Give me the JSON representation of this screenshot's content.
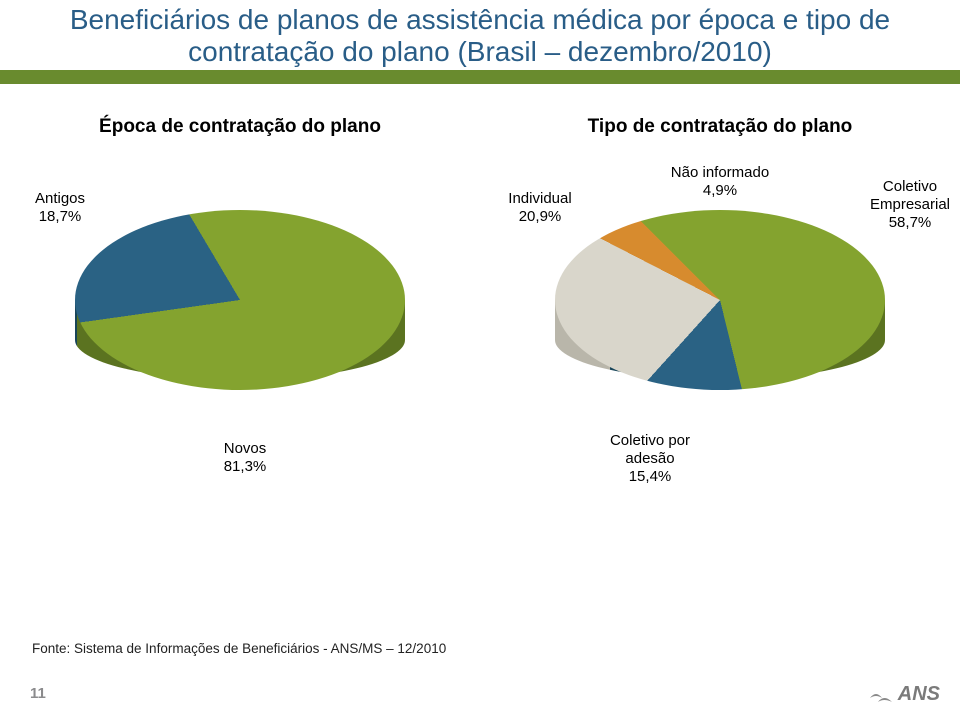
{
  "title_line1": "Beneficiários de planos de assistência médica por época e tipo de",
  "title_line2": "contratação do plano  (Brasil – dezembro/2010)",
  "title_color": "#295d87",
  "band_color": "#698b2e",
  "subtitle_left": "Época de contratação do plano",
  "subtitle_right": "Tipo de contratação do plano",
  "chart_left": {
    "type": "pie-3d",
    "slices": [
      {
        "name": "Antigos",
        "value": 18.7,
        "label": "Antigos\n18,7%",
        "color": "#2a6284",
        "side_color": "#184559"
      },
      {
        "name": "Novos",
        "value": 81.3,
        "label": "Novos\n81,3%",
        "color": "#84a32f",
        "side_color": "#5b7320"
      }
    ],
    "label_fontsize": 15
  },
  "chart_right": {
    "type": "pie-3d",
    "slices": [
      {
        "name": "Individual",
        "value": 20.9,
        "label": "Individual\n20,9%",
        "color": "#d9d6cb",
        "side_color": "#b9b6aa"
      },
      {
        "name": "Não informado",
        "value": 4.9,
        "label": "Não informado\n4,9%",
        "color": "#d78b2e",
        "side_color": "#a96a1f"
      },
      {
        "name": "Coletivo Empresarial",
        "value": 58.7,
        "label": "Coletivo\nEmpresarial\n58,7%",
        "color": "#84a32f",
        "side_color": "#5b7320"
      },
      {
        "name": "Coletivo por adesão",
        "value": 15.4,
        "label": "Coletivo por\nadesão\n15,4%",
        "color": "#2a6284",
        "side_color": "#184559"
      }
    ],
    "label_fontsize": 15
  },
  "source_line": "Fonte: Sistema de Informações de Beneficiários - ANS/MS – 12/2010",
  "page_number": "11",
  "logo_text": "ANS",
  "background_color": "#ffffff"
}
